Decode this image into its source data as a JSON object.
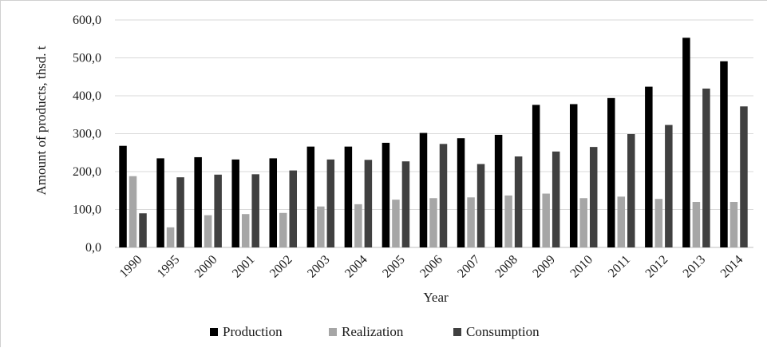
{
  "chart_data": {
    "type": "bar",
    "title": "",
    "xlabel": "Year",
    "ylabel": "Amount of products, thsd. t",
    "ylim": [
      0,
      600
    ],
    "y_ticks": [
      "0,0",
      "100,0",
      "200,0",
      "300,0",
      "400,0",
      "500,0",
      "600,0"
    ],
    "y_tick_values": [
      0,
      100,
      200,
      300,
      400,
      500,
      600
    ],
    "grid": true,
    "legend_position": "bottom",
    "categories": [
      "1990",
      "1995",
      "2000",
      "2001",
      "2002",
      "2003",
      "2004",
      "2005",
      "2006",
      "2007",
      "2008",
      "2009",
      "2010",
      "2011",
      "2012",
      "2013",
      "2014"
    ],
    "series": [
      {
        "name": "Production",
        "color": "#000000",
        "values": [
          268,
          235,
          238,
          232,
          235,
          266,
          266,
          276,
          302,
          288,
          297,
          376,
          378,
          394,
          424,
          553,
          491
        ]
      },
      {
        "name": "Realization",
        "color": "#a6a6a6",
        "values": [
          188,
          53,
          85,
          88,
          91,
          108,
          114,
          126,
          130,
          132,
          137,
          142,
          130,
          134,
          128,
          120,
          120
        ]
      },
      {
        "name": "Consumption",
        "color": "#404040",
        "values": [
          90,
          185,
          192,
          193,
          203,
          232,
          231,
          227,
          273,
          220,
          240,
          253,
          265,
          299,
          323,
          419,
          372
        ]
      }
    ]
  }
}
